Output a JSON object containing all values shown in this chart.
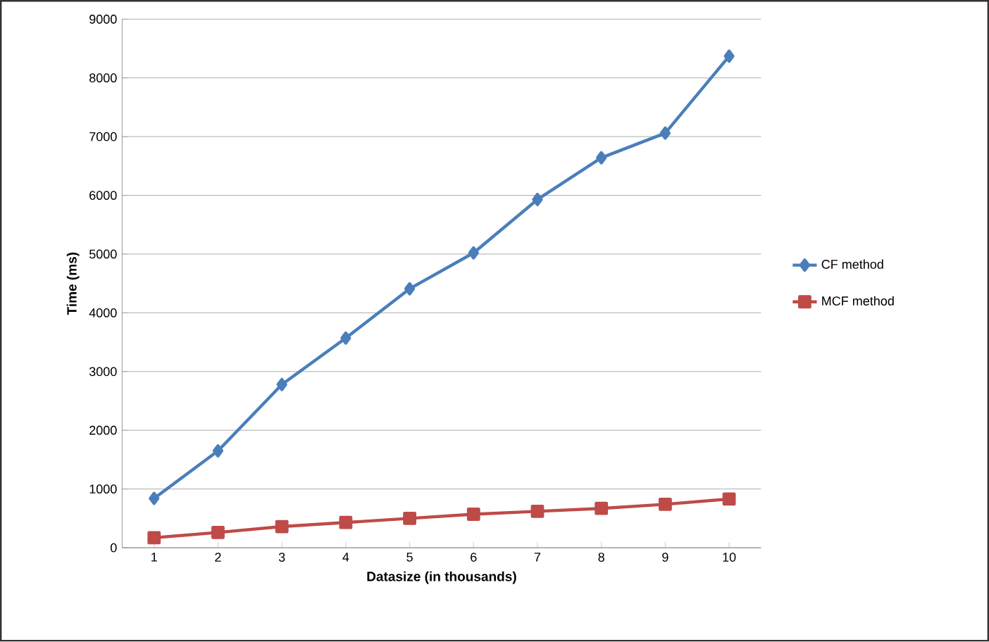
{
  "chart_data": {
    "type": "line",
    "xlabel": "Datasize (in thousands)",
    "ylabel": "Time (ms)",
    "categories": [
      "1",
      "2",
      "3",
      "4",
      "5",
      "6",
      "7",
      "8",
      "9",
      "10"
    ],
    "series": [
      {
        "name": "CF method",
        "color": "#4a7ebb",
        "marker": "diamond",
        "values": [
          840,
          1650,
          2780,
          3570,
          4410,
          5020,
          5930,
          6640,
          7060,
          8370
        ]
      },
      {
        "name": "MCF method",
        "color": "#be4b48",
        "marker": "square",
        "values": [
          170,
          260,
          360,
          430,
          500,
          570,
          620,
          670,
          740,
          830
        ]
      }
    ],
    "ylim": [
      0,
      9000
    ],
    "yticks": [
      0,
      1000,
      2000,
      3000,
      4000,
      5000,
      6000,
      7000,
      8000,
      9000
    ],
    "grid": "y",
    "legend": "right",
    "line_style": "solid"
  }
}
